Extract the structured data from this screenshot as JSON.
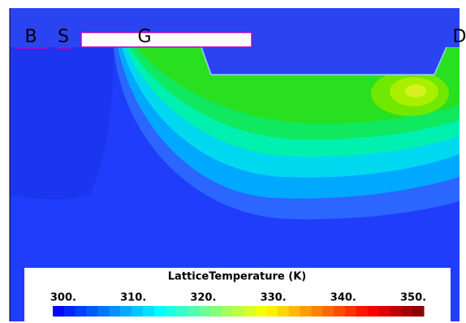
{
  "chart_data": {
    "type": "contour",
    "electrodes": [
      "B",
      "S",
      "G",
      "D"
    ],
    "colorbar": {
      "title": "LatticeTemperature (K)",
      "lim": [
        298.5,
        351.5
      ],
      "ticks": [
        {
          "value": 300,
          "label": "300."
        },
        {
          "value": 310,
          "label": "310."
        },
        {
          "value": 320,
          "label": "320."
        },
        {
          "value": 330,
          "label": "330."
        },
        {
          "value": 340,
          "label": "340."
        },
        {
          "value": 350,
          "label": "350."
        }
      ]
    }
  }
}
